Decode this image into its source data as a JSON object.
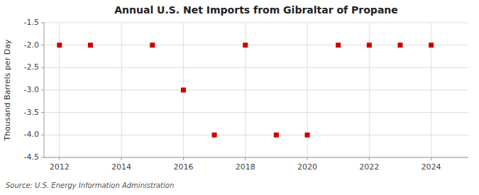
{
  "chart_data": {
    "type": "scatter",
    "title": "Annual U.S. Net Imports from Gibraltar of Propane",
    "y_label": "Thousand Barrels per Day",
    "annotations": [
      "Source: U.S. Energy Information Administration"
    ],
    "x": [
      2012,
      2013,
      2015,
      2016,
      2017,
      2018,
      2019,
      2020,
      2021,
      2022,
      2023,
      2024
    ],
    "values": [
      -2,
      -2,
      -2,
      -3,
      -4,
      -2,
      -4,
      -4,
      -2,
      -2,
      -2,
      -2
    ],
    "color": "#cc0000",
    "marker": "square",
    "xlim": [
      2011.5,
      2025.2
    ],
    "ylim": [
      -4.5,
      -1.5
    ],
    "xticks": [
      2012,
      2014,
      2016,
      2018,
      2020,
      2022,
      2024
    ],
    "yticks": [
      -4.5,
      {
        "value": -4,
        "label": "-4.0"
      },
      -3.5,
      {
        "value": -3,
        "label": "-3.0"
      },
      -2.5,
      {
        "value": -2,
        "label": "-2.0"
      },
      -1.5
    ],
    "grid": true
  }
}
